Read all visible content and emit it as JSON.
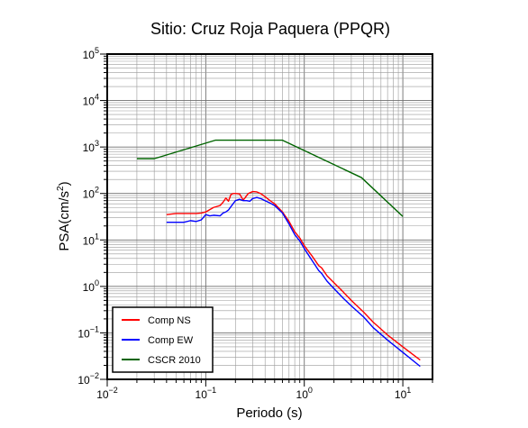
{
  "chart_data": {
    "type": "line",
    "title": "Sitio: Cruz Roja Paquera (PPQR)",
    "xlabel": "Periodo (s)",
    "ylabel": "PSA(cm/s²)",
    "ylabel_main": "PSA(cm/s",
    "ylabel_exp": "2",
    "ylabel_close": ")",
    "xscale": "log",
    "yscale": "log",
    "xlim": [
      0.01,
      20
    ],
    "ylim": [
      0.01,
      100000
    ],
    "grid": true,
    "legend_position": "bottom-left",
    "x_ticks": [
      {
        "base": "10",
        "exp": "−2"
      },
      {
        "base": "10",
        "exp": "−1"
      },
      {
        "base": "10",
        "exp": "0"
      },
      {
        "base": "10",
        "exp": "1"
      }
    ],
    "y_ticks": [
      {
        "base": "10",
        "exp": "−2"
      },
      {
        "base": "10",
        "exp": "−1"
      },
      {
        "base": "10",
        "exp": "0"
      },
      {
        "base": "10",
        "exp": "1"
      },
      {
        "base": "10",
        "exp": "2"
      },
      {
        "base": "10",
        "exp": "3"
      },
      {
        "base": "10",
        "exp": "4"
      },
      {
        "base": "10",
        "exp": "5"
      }
    ],
    "series": [
      {
        "name": "Comp NS",
        "color": "#ff0000",
        "x": [
          0.04,
          0.05,
          0.06,
          0.07,
          0.08,
          0.09,
          0.1,
          0.11,
          0.12,
          0.14,
          0.15,
          0.16,
          0.17,
          0.18,
          0.19,
          0.2,
          0.22,
          0.24,
          0.25,
          0.27,
          0.3,
          0.33,
          0.36,
          0.4,
          0.45,
          0.5,
          0.6,
          0.7,
          0.8,
          0.9,
          1.0,
          1.2,
          1.4,
          1.5,
          1.7,
          2.0,
          2.5,
          3.0,
          4.0,
          5.0,
          7.0,
          10.0,
          15.0
        ],
        "y": [
          35,
          37,
          37,
          37,
          37,
          38,
          40,
          45,
          50,
          55,
          65,
          80,
          68,
          95,
          100,
          100,
          98,
          72,
          80,
          100,
          110,
          108,
          100,
          85,
          70,
          60,
          40,
          25,
          15,
          11,
          7.5,
          4.5,
          2.8,
          2.5,
          1.7,
          1.2,
          0.75,
          0.5,
          0.28,
          0.17,
          0.09,
          0.05,
          0.026
        ]
      },
      {
        "name": "Comp EW",
        "color": "#0000ff",
        "x": [
          0.04,
          0.05,
          0.06,
          0.07,
          0.08,
          0.09,
          0.1,
          0.11,
          0.12,
          0.14,
          0.15,
          0.16,
          0.17,
          0.18,
          0.2,
          0.22,
          0.24,
          0.26,
          0.28,
          0.3,
          0.33,
          0.36,
          0.4,
          0.45,
          0.5,
          0.6,
          0.7,
          0.8,
          0.9,
          1.0,
          1.2,
          1.4,
          1.5,
          1.7,
          2.0,
          2.5,
          3.0,
          4.0,
          5.0,
          7.0,
          10.0,
          15.0
        ],
        "y": [
          24,
          24,
          24,
          26,
          25,
          27,
          35,
          33,
          34,
          33,
          38,
          40,
          44,
          52,
          70,
          75,
          70,
          70,
          68,
          78,
          82,
          78,
          70,
          62,
          55,
          38,
          22,
          13,
          9.5,
          6.5,
          3.6,
          2.2,
          1.9,
          1.3,
          0.9,
          0.55,
          0.38,
          0.22,
          0.13,
          0.07,
          0.038,
          0.019
        ]
      },
      {
        "name": "CSCR 2010",
        "color": "#006400",
        "x": [
          0.02,
          0.03,
          0.125,
          0.6,
          3.8,
          10.0
        ],
        "y": [
          560,
          560,
          1400,
          1400,
          220,
          32
        ]
      }
    ]
  }
}
